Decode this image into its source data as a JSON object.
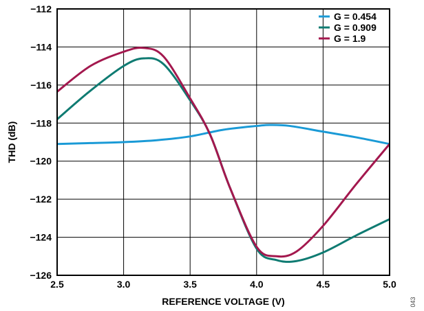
{
  "figure_id": "043",
  "chart_data": {
    "type": "line",
    "title": "",
    "xlabel": "REFERENCE VOLTAGE (V)",
    "ylabel": "THD (dB)",
    "xlim": [
      2.5,
      5.0
    ],
    "ylim": [
      -126,
      -112
    ],
    "x_ticks": [
      2.5,
      3.0,
      3.5,
      4.0,
      4.5,
      5.0
    ],
    "x_tick_labels": [
      "2.5",
      "3.0",
      "3.5",
      "4.0",
      "4.5",
      "5.0"
    ],
    "y_ticks": [
      -126,
      -124,
      -122,
      -120,
      -118,
      -116,
      -114,
      -112
    ],
    "y_tick_labels": [
      "−126",
      "−124",
      "−122",
      "−120",
      "−118",
      "−116",
      "−114",
      "−112"
    ],
    "grid": true,
    "legend_position": "top-right",
    "series": [
      {
        "name": "G = 0.454",
        "color": "#1a9ad6",
        "x": [
          2.5,
          2.75,
          3.0,
          3.25,
          3.5,
          3.75,
          4.0,
          4.1,
          4.25,
          4.5,
          4.75,
          5.0
        ],
        "y": [
          -119.1,
          -119.05,
          -119.0,
          -118.9,
          -118.7,
          -118.35,
          -118.15,
          -118.1,
          -118.15,
          -118.45,
          -118.75,
          -119.1
        ]
      },
      {
        "name": "G = 0.909",
        "color": "#0f7b72",
        "x": [
          2.5,
          2.75,
          3.0,
          3.15,
          3.3,
          3.5,
          3.65,
          3.8,
          4.0,
          4.15,
          4.3,
          4.5,
          4.75,
          5.0
        ],
        "y": [
          -117.8,
          -116.3,
          -115.0,
          -114.6,
          -114.9,
          -116.8,
          -118.6,
          -121.4,
          -124.6,
          -125.2,
          -125.25,
          -124.8,
          -123.9,
          -123.05
        ]
      },
      {
        "name": "G = 1.9",
        "color": "#a3184e",
        "x": [
          2.5,
          2.75,
          3.0,
          3.15,
          3.3,
          3.5,
          3.65,
          3.8,
          4.0,
          4.15,
          4.3,
          4.5,
          4.75,
          5.0
        ],
        "y": [
          -116.35,
          -115.0,
          -114.25,
          -114.05,
          -114.5,
          -116.7,
          -118.6,
          -121.4,
          -124.5,
          -125.0,
          -124.75,
          -123.4,
          -121.2,
          -119.1
        ]
      }
    ]
  }
}
